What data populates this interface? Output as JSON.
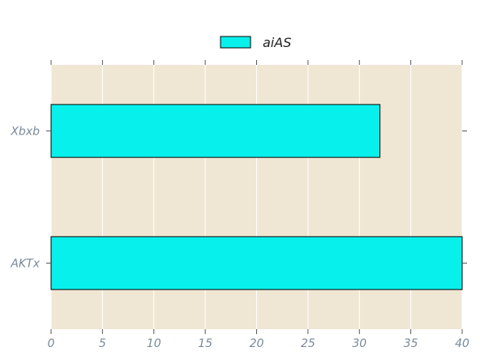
{
  "chart_data": {
    "type": "bar",
    "orientation": "horizontal",
    "categories": [
      "AKTx",
      "Xbxb"
    ],
    "series": [
      {
        "name": "aiAS",
        "values": [
          40,
          32
        ]
      }
    ],
    "x_ticks": [
      "0",
      "5",
      "10",
      "15",
      "20",
      "25",
      "30",
      "35",
      "40"
    ],
    "xlim": [
      0,
      40
    ],
    "title": "",
    "xlabel": "",
    "ylabel": "",
    "grid": true,
    "legend_position": "top-center",
    "colors": {
      "bar_fill": "#08f0ec",
      "bar_edge": "#000000",
      "plot_background": "#efe7d4",
      "grid": "#ffffff",
      "tick_label": "#7a8a99"
    }
  }
}
